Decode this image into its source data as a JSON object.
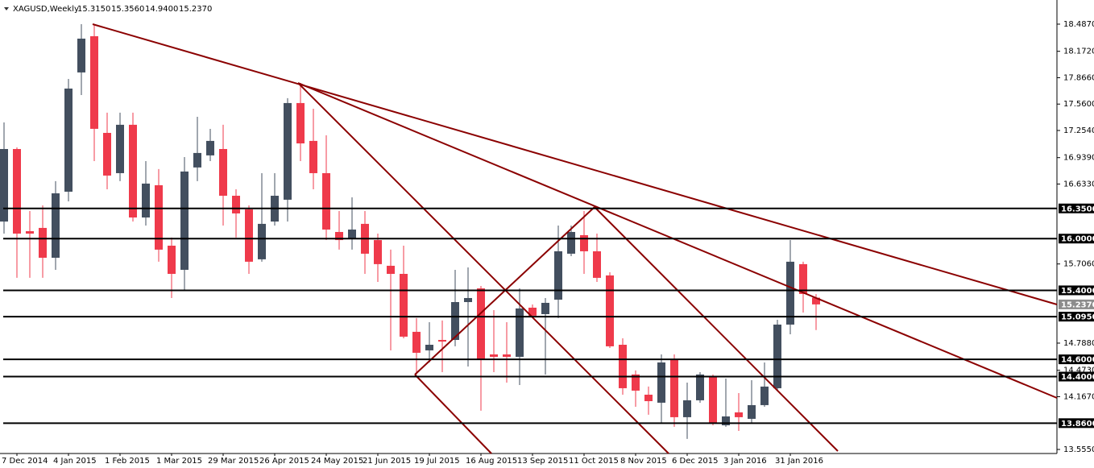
{
  "chart_data": {
    "type": "candlestick",
    "title": "XAGUSD,Weekly",
    "ohlc_header": [
      "15.3150",
      "15.3560",
      "14.9400",
      "15.2370"
    ],
    "up_color": "#434f5f",
    "down_color": "#ef3a4b",
    "categories": [
      null,
      "7 Dec 2014",
      null,
      null,
      null,
      "4 Jan 2015",
      null,
      null,
      null,
      "1 Feb 2015",
      null,
      null,
      null,
      "1 Mar 2015",
      null,
      null,
      null,
      "29 Mar 2015",
      null,
      null,
      null,
      "26 Apr 2015",
      null,
      null,
      null,
      "24 May 2015",
      null,
      null,
      null,
      "21 Jun 2015",
      null,
      null,
      null,
      "19 Jul 2015",
      null,
      null,
      null,
      "16 Aug 2015",
      null,
      null,
      null,
      "13 Sep 2015",
      null,
      null,
      null,
      "11 Oct 2015",
      null,
      null,
      null,
      "8 Nov 2015",
      null,
      null,
      null,
      "6 Dec 2015",
      null,
      null,
      null,
      "3 Jan 2016",
      null,
      null,
      null,
      "31 Jan 2016",
      null,
      null
    ],
    "open": [
      16.198,
      17.039,
      16.086,
      16.124,
      15.778,
      16.544,
      17.927,
      18.347,
      17.226,
      16.759,
      17.32,
      16.245,
      16.619,
      15.918,
      15.638,
      16.825,
      16.965,
      17.039,
      16.497,
      16.339,
      15.76,
      16.198,
      16.451,
      17.572,
      17.133,
      16.759,
      16.077,
      15.993,
      16.171,
      15.983,
      15.685,
      15.591,
      14.919,
      14.704,
      14.825,
      14.825,
      15.264,
      15.423,
      14.657,
      14.657,
      14.629,
      15.199,
      15.124,
      15.292,
      15.825,
      16.04,
      15.853,
      15.573,
      14.769,
      14.424,
      14.19,
      14.097,
      14.592,
      13.929,
      14.125,
      14.396,
      13.835,
      13.985,
      13.91,
      14.069,
      14.265,
      15.003,
      15.704,
      15.315
    ],
    "high": [
      17.347,
      17.058,
      16.32,
      16.385,
      16.666,
      17.852,
      18.487,
      18.487,
      17.46,
      17.46,
      17.46,
      16.899,
      16.806,
      16.012,
      16.946,
      17.413,
      17.273,
      17.32,
      16.572,
      16.385,
      16.759,
      16.759,
      17.628,
      17.805,
      17.506,
      17.198,
      16.32,
      16.479,
      16.32,
      16.058,
      15.872,
      15.918,
      15.078,
      15.031,
      15.05,
      15.638,
      15.666,
      15.451,
      15.171,
      15.031,
      15.423,
      15.236,
      15.311,
      16.152,
      16.152,
      16.32,
      16.058,
      15.61,
      14.844,
      14.471,
      14.284,
      14.657,
      14.657,
      14.33,
      14.452,
      14.424,
      14.377,
      14.209,
      14.358,
      14.564,
      15.059,
      15.983,
      15.732,
      15.356
    ],
    "low": [
      16.058,
      15.545,
      15.545,
      15.545,
      15.638,
      16.432,
      17.665,
      16.899,
      16.572,
      16.666,
      16.198,
      16.152,
      15.732,
      15.311,
      15.404,
      16.666,
      16.899,
      16.152,
      16.012,
      15.591,
      15.732,
      16.152,
      16.198,
      16.899,
      16.572,
      15.983,
      15.872,
      15.872,
      15.591,
      15.498,
      14.704,
      14.844,
      14.424,
      14.564,
      14.452,
      14.751,
      14.517,
      14.004,
      14.452,
      14.33,
      14.302,
      15.078,
      14.424,
      15.078,
      15.797,
      15.591,
      15.498,
      14.732,
      14.19,
      14.05,
      13.957,
      13.863,
      13.817,
      13.677,
      14.097,
      13.835,
      13.817,
      13.77,
      13.863,
      14.05,
      14.237,
      14.891,
      15.143,
      14.94
    ],
    "close": [
      17.039,
      16.058,
      16.058,
      15.778,
      16.525,
      17.74,
      18.319,
      17.273,
      16.731,
      17.32,
      16.245,
      16.638,
      15.872,
      15.591,
      16.778,
      16.993,
      17.133,
      16.497,
      16.292,
      15.732,
      16.171,
      16.497,
      17.572,
      17.104,
      16.759,
      16.105,
      15.983,
      16.105,
      15.825,
      15.704,
      15.591,
      14.863,
      14.676,
      14.769,
      14.806,
      15.264,
      15.311,
      14.592,
      14.629,
      14.629,
      15.19,
      15.106,
      15.255,
      15.853,
      16.077,
      15.853,
      15.545,
      14.751,
      14.265,
      14.237,
      14.115,
      14.564,
      13.929,
      14.125,
      14.424,
      13.863,
      13.938,
      13.929,
      14.069,
      14.284,
      15.003,
      15.732,
      15.358,
      15.237
    ],
    "ylim": [
      13.508,
      18.767
    ],
    "yticks": [
      {
        "value": 18.487,
        "label": "18.4870"
      },
      {
        "value": 18.172,
        "label": "18.1720"
      },
      {
        "value": 17.866,
        "label": "17.8660"
      },
      {
        "value": 17.56,
        "label": "17.5600"
      },
      {
        "value": 17.254,
        "label": "17.2540"
      },
      {
        "value": 16.939,
        "label": "16.9390"
      },
      {
        "value": 16.633,
        "label": "16.6330"
      },
      {
        "value": 15.706,
        "label": "15.7060"
      },
      {
        "value": 14.788,
        "label": "14.7880"
      },
      {
        "value": 14.473,
        "label": "14.4730"
      },
      {
        "value": 14.167,
        "label": "14.1670"
      },
      {
        "value": 13.555,
        "label": "13.5550"
      }
    ],
    "levels": [
      {
        "value": 16.35,
        "label": "16.3500"
      },
      {
        "value": 16.0,
        "label": "16.0000"
      },
      {
        "value": 15.4,
        "label": "15.4000"
      },
      {
        "value": 15.095,
        "label": "15.0950"
      },
      {
        "value": 14.6,
        "label": "14.6000"
      },
      {
        "value": 14.4,
        "label": "14.4000"
      },
      {
        "value": 13.86,
        "label": "13.8600"
      }
    ],
    "current_price": {
      "value": 15.237,
      "label": "15.2370"
    }
  }
}
